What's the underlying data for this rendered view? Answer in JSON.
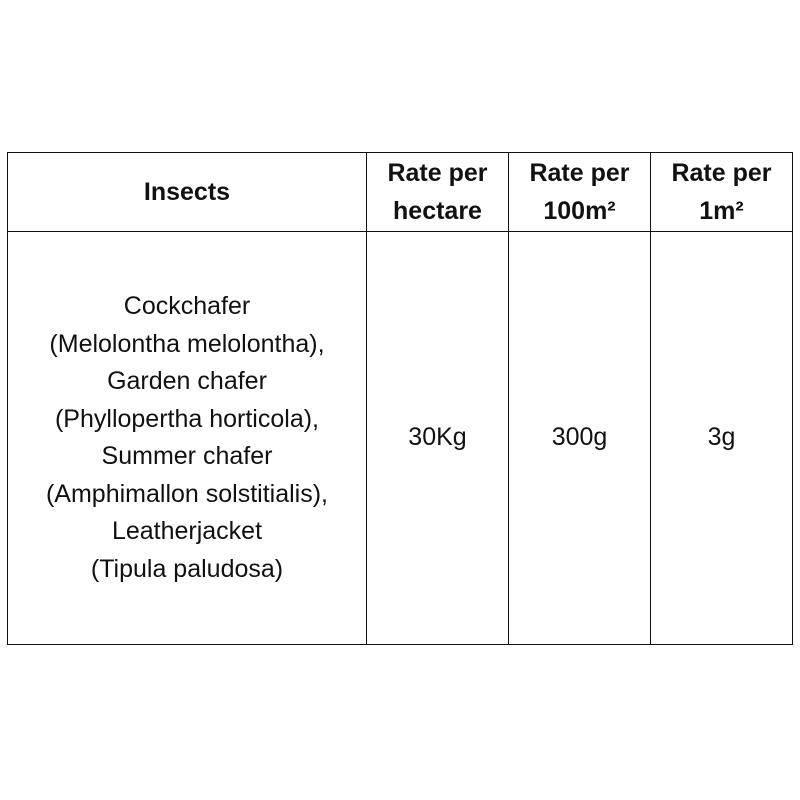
{
  "table": {
    "headers": {
      "insects": "Insects",
      "rate_hectare": [
        "Rate per",
        "hectare"
      ],
      "rate_100m2": [
        "Rate per",
        "100m²"
      ],
      "rate_1m2": [
        "Rate per",
        "1m²"
      ]
    },
    "rows": [
      {
        "insects_lines": [
          "Cockchafer",
          "(Melolontha melolontha),",
          "Garden chafer",
          "(Phyllopertha horticola),",
          "Summer chafer",
          "(Amphimallon solstitialis),",
          "Leatherjacket",
          "(Tipula paludosa)"
        ],
        "rate_hectare": "30Kg",
        "rate_100m2": "300g",
        "rate_1m2": "3g"
      }
    ]
  }
}
